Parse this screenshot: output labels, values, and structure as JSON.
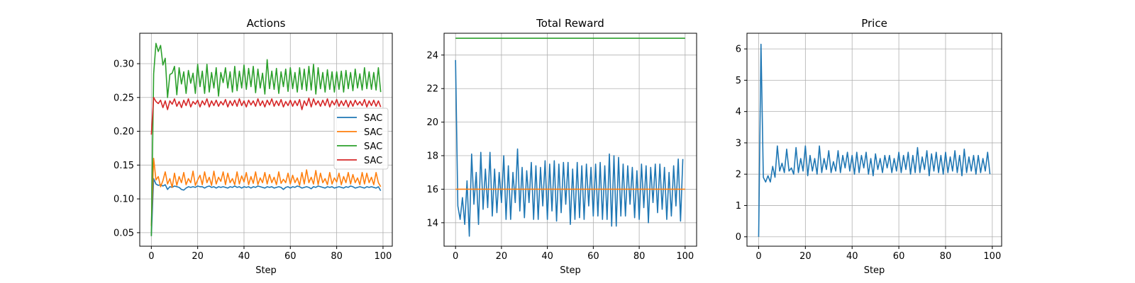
{
  "chart_data": [
    {
      "type": "line",
      "title": "Actions",
      "xlabel": "Step",
      "ylabel": "",
      "xlim": [
        -5,
        104
      ],
      "ylim": [
        0.03,
        0.345
      ],
      "x_ticks": [
        0,
        20,
        40,
        60,
        80,
        100
      ],
      "y_ticks": [
        0.05,
        0.1,
        0.15,
        0.2,
        0.25,
        0.3
      ],
      "y_tick_labels": [
        "0.05",
        "0.10",
        "0.15",
        "0.20",
        "0.25",
        "0.30"
      ],
      "grid": true,
      "legend_position": "center-right",
      "series": [
        {
          "name": "SAC",
          "color": "#1f77b4",
          "values": [
            0.045,
            0.13,
            0.122,
            0.12,
            0.121,
            0.119,
            0.121,
            0.114,
            0.118,
            0.117,
            0.119,
            0.118,
            0.117,
            0.114,
            0.113,
            0.116,
            0.118,
            0.117,
            0.118,
            0.117,
            0.119,
            0.118,
            0.118,
            0.116,
            0.118,
            0.119,
            0.117,
            0.118,
            0.116,
            0.118,
            0.117,
            0.118,
            0.117,
            0.116,
            0.118,
            0.117,
            0.119,
            0.117,
            0.118,
            0.116,
            0.118,
            0.117,
            0.118,
            0.116,
            0.118,
            0.117,
            0.119,
            0.118,
            0.117,
            0.116,
            0.118,
            0.117,
            0.118,
            0.116,
            0.117,
            0.118,
            0.117,
            0.114,
            0.117,
            0.118,
            0.116,
            0.118,
            0.117,
            0.119,
            0.118,
            0.116,
            0.117,
            0.118,
            0.117,
            0.115,
            0.118,
            0.117,
            0.119,
            0.118,
            0.117,
            0.116,
            0.118,
            0.117,
            0.118,
            0.116,
            0.117,
            0.118,
            0.117,
            0.116,
            0.118,
            0.117,
            0.119,
            0.118,
            0.116,
            0.117,
            0.118,
            0.117,
            0.116,
            0.118,
            0.117,
            0.118,
            0.117,
            0.116,
            0.118,
            0.112
          ]
        },
        {
          "name": "SAC",
          "color": "#ff7f0e",
          "values": [
            0.06,
            0.16,
            0.128,
            0.133,
            0.118,
            0.127,
            0.14,
            0.122,
            0.13,
            0.117,
            0.138,
            0.12,
            0.133,
            0.124,
            0.139,
            0.121,
            0.13,
            0.124,
            0.141,
            0.12,
            0.128,
            0.135,
            0.121,
            0.14,
            0.124,
            0.132,
            0.12,
            0.141,
            0.122,
            0.132,
            0.126,
            0.14,
            0.121,
            0.138,
            0.124,
            0.13,
            0.121,
            0.14,
            0.122,
            0.134,
            0.125,
            0.139,
            0.121,
            0.133,
            0.123,
            0.14,
            0.121,
            0.131,
            0.124,
            0.139,
            0.122,
            0.136,
            0.124,
            0.132,
            0.121,
            0.14,
            0.123,
            0.129,
            0.124,
            0.138,
            0.122,
            0.135,
            0.124,
            0.131,
            0.12,
            0.139,
            0.122,
            0.143,
            0.124,
            0.132,
            0.122,
            0.142,
            0.121,
            0.138,
            0.124,
            0.13,
            0.121,
            0.139,
            0.122,
            0.131,
            0.125,
            0.138,
            0.121,
            0.133,
            0.124,
            0.139,
            0.122,
            0.136,
            0.124,
            0.131,
            0.121,
            0.139,
            0.122,
            0.138,
            0.124,
            0.132,
            0.121,
            0.139,
            0.124,
            0.118
          ]
        },
        {
          "name": "SAC",
          "color": "#2ca02c",
          "values": [
            0.045,
            0.285,
            0.33,
            0.318,
            0.327,
            0.298,
            0.308,
            0.25,
            0.284,
            0.286,
            0.296,
            0.254,
            0.294,
            0.27,
            0.288,
            0.256,
            0.29,
            0.271,
            0.286,
            0.256,
            0.299,
            0.266,
            0.289,
            0.256,
            0.299,
            0.258,
            0.287,
            0.264,
            0.294,
            0.252,
            0.287,
            0.272,
            0.294,
            0.264,
            0.288,
            0.258,
            0.296,
            0.26,
            0.289,
            0.264,
            0.298,
            0.262,
            0.293,
            0.266,
            0.296,
            0.257,
            0.292,
            0.264,
            0.286,
            0.255,
            0.306,
            0.263,
            0.289,
            0.262,
            0.293,
            0.256,
            0.288,
            0.266,
            0.292,
            0.259,
            0.294,
            0.263,
            0.287,
            0.258,
            0.294,
            0.262,
            0.292,
            0.26,
            0.296,
            0.261,
            0.299,
            0.255,
            0.294,
            0.263,
            0.287,
            0.258,
            0.291,
            0.262,
            0.288,
            0.258,
            0.288,
            0.262,
            0.289,
            0.258,
            0.29,
            0.263,
            0.287,
            0.26,
            0.292,
            0.264,
            0.285,
            0.261,
            0.294,
            0.263,
            0.288,
            0.262,
            0.287,
            0.261,
            0.294,
            0.258
          ]
        },
        {
          "name": "SAC",
          "color": "#d62728",
          "values": [
            0.195,
            0.25,
            0.244,
            0.241,
            0.246,
            0.235,
            0.245,
            0.232,
            0.245,
            0.24,
            0.248,
            0.237,
            0.244,
            0.235,
            0.246,
            0.238,
            0.248,
            0.236,
            0.244,
            0.24,
            0.246,
            0.236,
            0.245,
            0.239,
            0.248,
            0.236,
            0.245,
            0.238,
            0.246,
            0.237,
            0.244,
            0.239,
            0.247,
            0.236,
            0.245,
            0.238,
            0.246,
            0.237,
            0.248,
            0.238,
            0.245,
            0.236,
            0.246,
            0.239,
            0.245,
            0.237,
            0.248,
            0.238,
            0.245,
            0.236,
            0.246,
            0.239,
            0.248,
            0.237,
            0.245,
            0.238,
            0.247,
            0.236,
            0.244,
            0.238,
            0.246,
            0.237,
            0.245,
            0.238,
            0.247,
            0.232,
            0.245,
            0.238,
            0.249,
            0.236,
            0.248,
            0.239,
            0.245,
            0.237,
            0.246,
            0.238,
            0.248,
            0.236,
            0.245,
            0.239,
            0.247,
            0.237,
            0.245,
            0.238,
            0.246,
            0.236,
            0.245,
            0.237,
            0.246,
            0.239,
            0.244,
            0.238,
            0.247,
            0.236,
            0.245,
            0.238,
            0.246,
            0.237,
            0.245,
            0.236
          ]
        }
      ]
    },
    {
      "type": "line",
      "title": "Total Reward",
      "xlabel": "Step",
      "ylabel": "",
      "xlim": [
        -5,
        105
      ],
      "ylim": [
        12.6,
        25.3
      ],
      "x_ticks": [
        0,
        20,
        40,
        60,
        80,
        100
      ],
      "y_ticks": [
        14,
        16,
        18,
        20,
        22,
        24
      ],
      "y_tick_labels": [
        "14",
        "16",
        "18",
        "20",
        "22",
        "24"
      ],
      "grid": true,
      "series": [
        {
          "color": "#1f77b4",
          "values": [
            23.7,
            15.0,
            14.2,
            15.5,
            13.9,
            16.5,
            13.2,
            18.1,
            15.1,
            17.0,
            13.9,
            18.2,
            14.8,
            17.2,
            14.9,
            18.2,
            14.4,
            17.2,
            14.6,
            17.0,
            15.2,
            18.0,
            14.2,
            17.4,
            14.2,
            17.0,
            15.2,
            18.4,
            14.7,
            17.3,
            14.3,
            17.1,
            15.2,
            17.6,
            14.2,
            17.4,
            14.2,
            17.3,
            15.0,
            17.7,
            14.2,
            17.5,
            14.7,
            17.7,
            14.1,
            17.5,
            14.6,
            17.6,
            15.1,
            17.6,
            13.9,
            17.2,
            14.2,
            17.6,
            14.3,
            17.4,
            14.2,
            17.5,
            15.0,
            17.3,
            14.4,
            17.5,
            14.4,
            17.6,
            14.2,
            17.4,
            14.2,
            18.1,
            13.8,
            18.0,
            13.8,
            17.9,
            14.4,
            17.5,
            14.4,
            17.4,
            15.1,
            17.3,
            14.3,
            17.1,
            14.2,
            17.5,
            14.9,
            17.4,
            14.0,
            17.3,
            15.2,
            17.5,
            14.6,
            17.5,
            14.8,
            17.3,
            14.2,
            17.0,
            14.4,
            17.4,
            15.0,
            17.8,
            14.1,
            17.8
          ]
        },
        {
          "color": "#ff7f0e",
          "values": [
            16.0,
            16.0
          ]
        },
        {
          "color": "#2ca02c",
          "values": [
            25.0,
            25.0
          ]
        }
      ]
    },
    {
      "type": "line",
      "title": "Price",
      "xlabel": "Step",
      "ylabel": "",
      "xlim": [
        -5,
        104
      ],
      "ylim": [
        -0.3,
        6.5
      ],
      "x_ticks": [
        0,
        20,
        40,
        60,
        80,
        100
      ],
      "y_ticks": [
        0,
        1,
        2,
        3,
        4,
        5,
        6
      ],
      "y_tick_labels": [
        "0",
        "1",
        "2",
        "3",
        "4",
        "5",
        "6"
      ],
      "grid": true,
      "series": [
        {
          "color": "#1f77b4",
          "values": [
            0.0,
            6.15,
            1.9,
            1.75,
            1.95,
            1.75,
            2.25,
            1.9,
            2.9,
            2.1,
            2.35,
            2.05,
            2.8,
            2.1,
            2.2,
            2.0,
            2.85,
            2.05,
            2.5,
            2.1,
            2.9,
            1.95,
            2.6,
            2.1,
            2.5,
            2.0,
            2.9,
            2.05,
            2.5,
            2.15,
            2.75,
            2.05,
            2.4,
            2.1,
            2.75,
            2.05,
            2.6,
            2.2,
            2.7,
            2.1,
            2.6,
            2.0,
            2.7,
            2.05,
            2.6,
            2.2,
            2.7,
            2.0,
            2.5,
            1.95,
            2.65,
            2.15,
            2.5,
            2.05,
            2.6,
            2.2,
            2.6,
            2.05,
            2.5,
            2.1,
            2.7,
            2.05,
            2.6,
            2.15,
            2.7,
            2.0,
            2.6,
            2.05,
            2.85,
            2.05,
            2.55,
            2.15,
            2.75,
            1.95,
            2.65,
            2.1,
            2.7,
            2.05,
            2.6,
            2.0,
            2.7,
            2.05,
            2.55,
            2.1,
            2.75,
            2.05,
            2.6,
            1.95,
            2.8,
            2.05,
            2.55,
            2.1,
            2.6,
            2.0,
            2.6,
            2.05,
            2.5,
            2.1,
            2.7,
            2.0
          ]
        }
      ]
    }
  ]
}
